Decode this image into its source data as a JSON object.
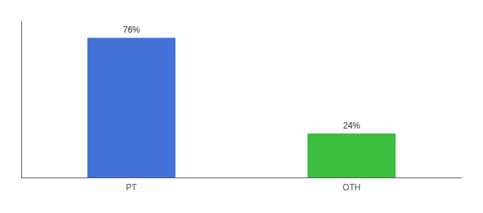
{
  "chart_data": {
    "type": "bar",
    "categories": [
      "PT",
      "OTH"
    ],
    "values": [
      76,
      24
    ],
    "value_labels": [
      "76%",
      "24%"
    ],
    "colors": [
      "#4472db",
      "#3dbd3d"
    ],
    "ylim": [
      0,
      85
    ],
    "data_labels": true,
    "tick_labels": "x",
    "grid": false
  }
}
